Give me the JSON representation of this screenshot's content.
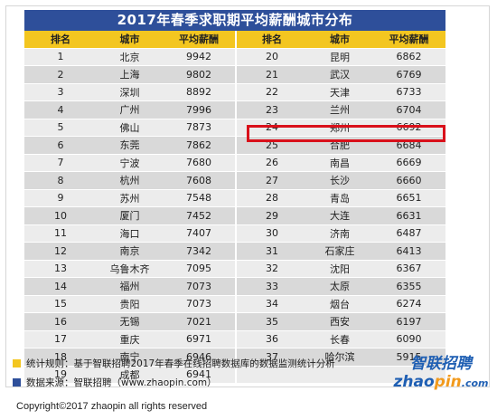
{
  "title": "2017年春季求职期平均薪酬城市分布",
  "headers": [
    "排名",
    "城市",
    "平均薪酬",
    "排名",
    "城市",
    "平均薪酬"
  ],
  "rows": [
    [
      "1",
      "北京",
      "9942",
      "20",
      "昆明",
      "6862"
    ],
    [
      "2",
      "上海",
      "9802",
      "21",
      "武汉",
      "6769"
    ],
    [
      "3",
      "深圳",
      "8892",
      "22",
      "天津",
      "6733"
    ],
    [
      "4",
      "广州",
      "7996",
      "23",
      "兰州",
      "6704"
    ],
    [
      "5",
      "佛山",
      "7873",
      "24",
      "郑州",
      "6692"
    ],
    [
      "6",
      "东莞",
      "7862",
      "25",
      "合肥",
      "6684"
    ],
    [
      "7",
      "宁波",
      "7680",
      "26",
      "南昌",
      "6669"
    ],
    [
      "8",
      "杭州",
      "7608",
      "27",
      "长沙",
      "6660"
    ],
    [
      "9",
      "苏州",
      "7548",
      "28",
      "青岛",
      "6651"
    ],
    [
      "10",
      "厦门",
      "7452",
      "29",
      "大连",
      "6631"
    ],
    [
      "11",
      "海口",
      "7407",
      "30",
      "济南",
      "6487"
    ],
    [
      "12",
      "南京",
      "7342",
      "31",
      "石家庄",
      "6413"
    ],
    [
      "13",
      "乌鲁木齐",
      "7095",
      "32",
      "沈阳",
      "6367"
    ],
    [
      "14",
      "福州",
      "7073",
      "33",
      "太原",
      "6355"
    ],
    [
      "15",
      "贵阳",
      "7073",
      "34",
      "烟台",
      "6274"
    ],
    [
      "16",
      "无锡",
      "7021",
      "35",
      "西安",
      "6197"
    ],
    [
      "17",
      "重庆",
      "6971",
      "36",
      "长春",
      "6090"
    ],
    [
      "18",
      "南宁",
      "6946",
      "37",
      "哈尔滨",
      "5915"
    ],
    [
      "19",
      "成都",
      "6941",
      "",
      "",
      " "
    ]
  ],
  "highlighted_rank": "25",
  "notes": {
    "rule": "统计规则：基于智联招聘2017年春季在线招聘数据库的数据监测统计分析",
    "source": "数据来源：智联招聘（www.zhaopin.com）"
  },
  "logo": {
    "cn": "智联招聘",
    "en_prefix": "zhao",
    "en_mid": "pin",
    "en_suffix": ".com"
  },
  "copyright": "Copyright©2017 zhaopin all rights reserved",
  "colors": {
    "title_bg": "#2e4f9a",
    "header_bg": "#f3c620",
    "highlight_border": "#d9101a",
    "rule_square": "#f3c620",
    "source_square": "#2e4f9a",
    "logo_blue": "#1f5fb3",
    "logo_orange": "#f29a1c"
  }
}
